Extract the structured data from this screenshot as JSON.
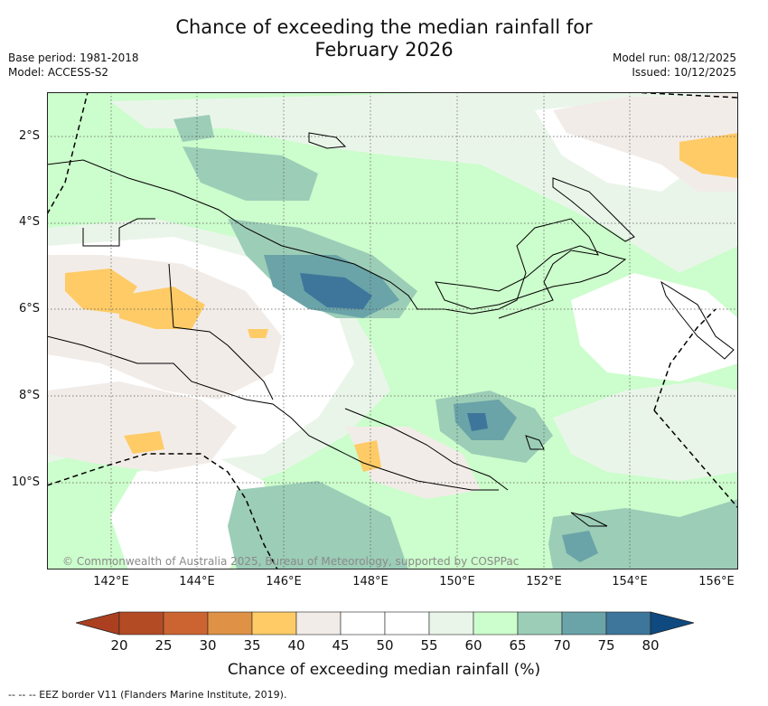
{
  "header": {
    "title_line1": "Chance of exceeding the median rainfall for",
    "title_line2": "February 2026",
    "base_period": "Base period: 1981-2018",
    "model": "Model: ACCESS-S2",
    "model_run": "Model run: 08/12/2025",
    "issued": "Issued: 10/12/2025"
  },
  "map": {
    "lat_labels": [
      "2°S",
      "4°S",
      "6°S",
      "8°S",
      "10°S"
    ],
    "lon_labels": [
      "142°E",
      "144°E",
      "146°E",
      "148°E",
      "150°E",
      "152°E",
      "154°E",
      "156°E"
    ],
    "copyright": "© Commonwealth of Australia 2025, Bureau of Meteorology, supported by COSPPac",
    "colors": {
      "c35_40": "#fecb66",
      "c40_45": "#f2ece8",
      "c45_55": "#ffffff",
      "c55_60": "#eaf5ea",
      "c60_65": "#ccfdcc",
      "c65_70": "#9ccdb7",
      "c70_75": "#6aa4a8",
      "c75_80": "#3e769b",
      "coast": "#000000",
      "grid": "#555555"
    }
  },
  "colorbar": {
    "ticks": [
      "20",
      "25",
      "30",
      "35",
      "40",
      "45",
      "50",
      "55",
      "60",
      "65",
      "70",
      "75",
      "80"
    ],
    "colors": [
      "#ab3f20",
      "#b34b25",
      "#cc6431",
      "#df9146",
      "#fecb66",
      "#f2ece8",
      "#ffffff",
      "#ffffff",
      "#eaf5ea",
      "#ccfdcc",
      "#9ccdb7",
      "#6aa4a8",
      "#3e769b",
      "#0e4a7f"
    ],
    "label": "Chance of exceeding median rainfall (%)"
  },
  "footnote": "--  --  -- EEZ border V11 (Flanders Marine Institute, 2019)."
}
